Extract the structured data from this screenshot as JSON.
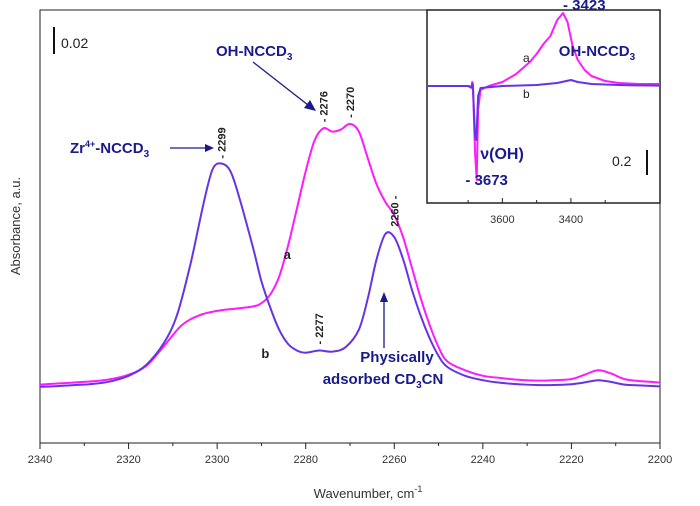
{
  "chart_data": [
    {
      "type": "line",
      "xlabel": "Wavenumber, cm",
      "xlabel_sup": "-1",
      "ylabel": "Absorbance, a.u.",
      "xlim": [
        2340,
        2200
      ],
      "x_ticks": [
        "2340",
        "2320",
        "2300",
        "2280",
        "2260",
        "2240",
        "2220",
        "2200"
      ],
      "scale_bar_label": "0.02",
      "series": [
        {
          "name": "a",
          "color": "#ff1aff",
          "points": [
            [
              2340,
              0.007
            ],
            [
              2336,
              0.0075
            ],
            [
              2332,
              0.008
            ],
            [
              2328,
              0.0085
            ],
            [
              2324,
              0.0095
            ],
            [
              2320,
              0.0115
            ],
            [
              2316,
              0.0155
            ],
            [
              2312,
              0.0245
            ],
            [
              2308,
              0.034
            ],
            [
              2304,
              0.0385
            ],
            [
              2300,
              0.0405
            ],
            [
              2296,
              0.0415
            ],
            [
              2292,
              0.0425
            ],
            [
              2290,
              0.044
            ],
            [
              2288,
              0.048
            ],
            [
              2286,
              0.056
            ],
            [
              2284,
              0.07
            ],
            [
              2282,
              0.087
            ],
            [
              2280,
              0.104
            ],
            [
              2278,
              0.118
            ],
            [
              2276,
              0.1235
            ],
            [
              2274,
              0.122
            ],
            [
              2272,
              0.123
            ],
            [
              2270,
              0.1255
            ],
            [
              2268,
              0.122
            ],
            [
              2266,
              0.11
            ],
            [
              2264,
              0.098
            ],
            [
              2262,
              0.09
            ],
            [
              2260,
              0.084
            ],
            [
              2258,
              0.074
            ],
            [
              2256,
              0.06
            ],
            [
              2254,
              0.046
            ],
            [
              2252,
              0.034
            ],
            [
              2250,
              0.024
            ],
            [
              2248,
              0.0175
            ],
            [
              2244,
              0.0135
            ],
            [
              2240,
              0.011
            ],
            [
              2236,
              0.01
            ],
            [
              2232,
              0.0092
            ],
            [
              2228,
              0.0088
            ],
            [
              2224,
              0.009
            ],
            [
              2220,
              0.0095
            ],
            [
              2217,
              0.0115
            ],
            [
              2214,
              0.0135
            ],
            [
              2211,
              0.012
            ],
            [
              2208,
              0.0095
            ],
            [
              2204,
              0.0085
            ],
            [
              2200,
              0.008
            ]
          ]
        },
        {
          "name": "b",
          "color": "#6633e6",
          "points": [
            [
              2340,
              0.006
            ],
            [
              2336,
              0.0063
            ],
            [
              2332,
              0.0068
            ],
            [
              2328,
              0.0073
            ],
            [
              2324,
              0.0085
            ],
            [
              2320,
              0.011
            ],
            [
              2316,
              0.016
            ],
            [
              2312,
              0.026
            ],
            [
              2309,
              0.039
            ],
            [
              2306,
              0.062
            ],
            [
              2303,
              0.09
            ],
            [
              2301,
              0.105
            ],
            [
              2299,
              0.1075
            ],
            [
              2297,
              0.104
            ],
            [
              2295,
              0.092
            ],
            [
              2292,
              0.07
            ],
            [
              2290,
              0.054
            ],
            [
              2288,
              0.042
            ],
            [
              2286,
              0.032
            ],
            [
              2284,
              0.0255
            ],
            [
              2282,
              0.0225
            ],
            [
              2280,
              0.0215
            ],
            [
              2277,
              0.0225
            ],
            [
              2274,
              0.022
            ],
            [
              2271,
              0.024
            ],
            [
              2268,
              0.032
            ],
            [
              2266,
              0.046
            ],
            [
              2264,
              0.064
            ],
            [
              2262,
              0.0755
            ],
            [
              2260,
              0.074
            ],
            [
              2258,
              0.064
            ],
            [
              2256,
              0.05
            ],
            [
              2254,
              0.038
            ],
            [
              2252,
              0.028
            ],
            [
              2250,
              0.02
            ],
            [
              2248,
              0.015
            ],
            [
              2244,
              0.011
            ],
            [
              2240,
              0.009
            ],
            [
              2236,
              0.0078
            ],
            [
              2232,
              0.0072
            ],
            [
              2228,
              0.0068
            ],
            [
              2224,
              0.0068
            ],
            [
              2220,
              0.0072
            ],
            [
              2217,
              0.008
            ],
            [
              2214,
              0.009
            ],
            [
              2211,
              0.0082
            ],
            [
              2208,
              0.007
            ],
            [
              2204,
              0.0066
            ],
            [
              2200,
              0.0062
            ]
          ]
        }
      ],
      "curve_labels": [
        {
          "text": "a",
          "x": 2285,
          "y": 0.064
        },
        {
          "text": "b",
          "x": 2290,
          "y": 0.019
        }
      ],
      "peak_labels": [
        {
          "text": "- 2299",
          "x": 2299,
          "y": 0.107
        },
        {
          "text": "- 2276",
          "x": 2276,
          "y": 0.1235
        },
        {
          "text": "- 2270",
          "x": 2270,
          "y": 0.1255
        },
        {
          "text": "- 2277",
          "x": 2277,
          "y": 0.0225
        },
        {
          "text": "2260 -",
          "x": 2260,
          "y": 0.076
        }
      ],
      "annotations": {
        "zr": {
          "main": "Zr",
          "sup": "4+",
          "rest": "-NCCD",
          "sub": "3"
        },
        "ohnccd": {
          "main": "OH-NCCD",
          "sub": "3"
        },
        "phys_line1": "Physically",
        "phys_line2_main": "adsorbed CD",
        "phys_line2_sub": "3",
        "phys_line2_rest": "CN"
      }
    },
    {
      "type": "line",
      "xlim": [
        3820,
        3140
      ],
      "x_ticks": [
        "3600",
        "3400"
      ],
      "scale_bar_label": "0.2",
      "series": [
        {
          "name": "a",
          "color": "#ff1aff",
          "points": [
            [
              3820,
              0.0
            ],
            [
              3700,
              0.0
            ],
            [
              3690,
              -0.01
            ],
            [
              3688,
              0.02
            ],
            [
              3686,
              0.01
            ],
            [
              3680,
              -0.33
            ],
            [
              3675,
              -0.47
            ],
            [
              3671,
              -0.12
            ],
            [
              3664,
              -0.02
            ],
            [
              3640,
              0.0
            ],
            [
              3600,
              0.02
            ],
            [
              3560,
              0.06
            ],
            [
              3520,
              0.12
            ],
            [
              3500,
              0.16
            ],
            [
              3480,
              0.21
            ],
            [
              3460,
              0.25
            ],
            [
              3440,
              0.33
            ],
            [
              3423,
              0.365
            ],
            [
              3410,
              0.32
            ],
            [
              3395,
              0.2
            ],
            [
              3380,
              0.13
            ],
            [
              3360,
              0.08
            ],
            [
              3340,
              0.05
            ],
            [
              3300,
              0.025
            ],
            [
              3260,
              0.015
            ],
            [
              3200,
              0.01
            ],
            [
              3140,
              0.01
            ]
          ]
        },
        {
          "name": "b",
          "color": "#6633e6",
          "points": [
            [
              3820,
              0.0
            ],
            [
              3700,
              0.0
            ],
            [
              3690,
              -0.005
            ],
            [
              3688,
              0.01
            ],
            [
              3686,
              0.0
            ],
            [
              3680,
              -0.25
            ],
            [
              3676,
              -0.27
            ],
            [
              3671,
              -0.05
            ],
            [
              3664,
              -0.01
            ],
            [
              3600,
              0.0
            ],
            [
              3500,
              0.005
            ],
            [
              3440,
              0.015
            ],
            [
              3400,
              0.03
            ],
            [
              3380,
              0.02
            ],
            [
              3340,
              0.01
            ],
            [
              3260,
              0.005
            ],
            [
              3200,
              0.003
            ],
            [
              3140,
              0.002
            ]
          ]
        }
      ],
      "curve_labels": [
        {
          "text": "a",
          "x": 3540,
          "y": 0.12
        },
        {
          "text": "b",
          "x": 3540,
          "y": -0.06
        }
      ],
      "peak_labels": [
        {
          "text": "- 3423",
          "x": 3423,
          "y": 0.365
        },
        {
          "text": "- 3673",
          "x": 3673,
          "y": -0.47
        }
      ],
      "annotations": {
        "ohnccd": {
          "main": "OH-NCCD",
          "sub": "3"
        },
        "nuoh": "ν(OH)"
      }
    }
  ]
}
